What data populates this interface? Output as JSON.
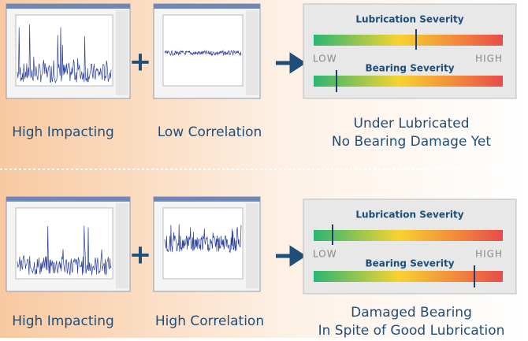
{
  "rows": [
    {
      "signal_label": "High Impacting",
      "correlation_label": "Low Correlation",
      "gauge": {
        "top_title": "Lubrication Severity",
        "low": "LOW",
        "high": "HIGH",
        "bottom_title": "Bearing Severity"
      },
      "result": [
        "Under Lubricated",
        "No Bearing Damage Yet"
      ]
    },
    {
      "signal_label": "High Impacting",
      "correlation_label": "High Correlation",
      "gauge": {
        "top_title": "Lubrication Severity",
        "low": "LOW",
        "high": "HIGH",
        "bottom_title": "Bearing Severity"
      },
      "result": [
        "Damaged Bearing",
        "In Spite of Good Lubrication"
      ]
    }
  ]
}
